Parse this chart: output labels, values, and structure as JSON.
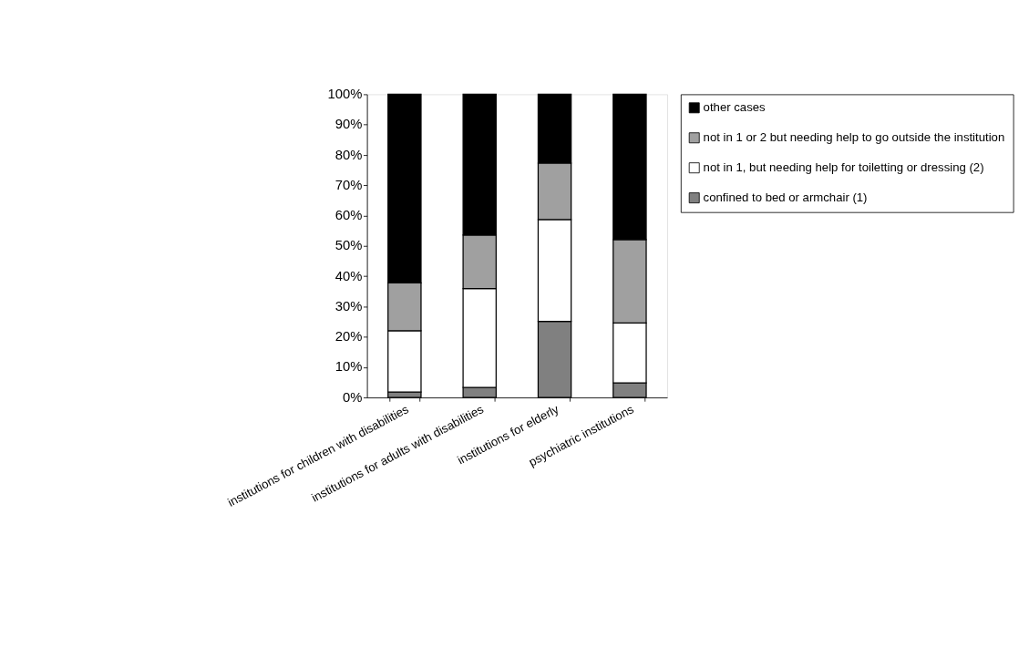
{
  "chart_data": {
    "type": "bar",
    "stacked": true,
    "categories": [
      "institutions for children with disabilities",
      "institutions for adults with disabilities",
      "institutions for elderly",
      "psychiatric institutions"
    ],
    "series": [
      {
        "name": "confined to bed or armchair (1)",
        "color": "#808080",
        "values": [
          1.8,
          3.3,
          25.1,
          4.8
        ]
      },
      {
        "name": "not in 1, but needing help for toiletting or dressing (2)",
        "color": "#ffffff",
        "values": [
          20.2,
          32.6,
          33.6,
          19.8
        ]
      },
      {
        "name": "not in 1 or 2 but needing help to go outside the institution",
        "color": "#a0a0a0",
        "values": [
          15.8,
          17.7,
          18.6,
          27.5
        ]
      },
      {
        "name": "other cases",
        "color": "#000000",
        "values": [
          62.2,
          46.4,
          22.7,
          47.9
        ]
      }
    ],
    "ylim": [
      0,
      100
    ],
    "yticks": [
      {
        "value": 0,
        "label": "0%"
      },
      {
        "value": 10,
        "label": "10%"
      },
      {
        "value": 20,
        "label": "20%"
      },
      {
        "value": 30,
        "label": "30%"
      },
      {
        "value": 40,
        "label": "40%"
      },
      {
        "value": 50,
        "label": "50%"
      },
      {
        "value": 60,
        "label": "60%"
      },
      {
        "value": 70,
        "label": "70%"
      },
      {
        "value": 80,
        "label": "80%"
      },
      {
        "value": 90,
        "label": "90%"
      },
      {
        "value": 100,
        "label": "100%"
      }
    ],
    "grid": false,
    "legend": "right"
  }
}
